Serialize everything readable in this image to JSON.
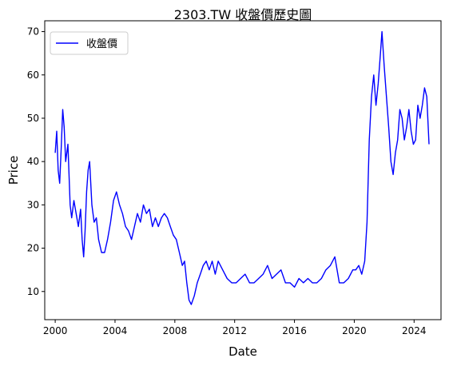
{
  "chart_data": {
    "type": "line",
    "title": "2303.TW 收盤價歷史圖",
    "xlabel": "Date",
    "ylabel": "Price",
    "xlim": [
      1999.3,
      2025.8
    ],
    "ylim": [
      3.5,
      72.5
    ],
    "x_ticks": [
      "2000",
      "2004",
      "2008",
      "2012",
      "2016",
      "2020",
      "2024"
    ],
    "y_ticks": [
      "10",
      "20",
      "30",
      "40",
      "50",
      "60",
      "70"
    ],
    "grid": false,
    "legend": "top-left",
    "colors": {
      "line": "#0000ff",
      "axis": "#000000",
      "background": "#ffffff"
    },
    "series": [
      {
        "name": "收盤價",
        "x": [
          2000.0,
          2000.1,
          2000.2,
          2000.3,
          2000.4,
          2000.5,
          2000.6,
          2000.7,
          2000.85,
          2001.0,
          2001.1,
          2001.25,
          2001.4,
          2001.55,
          2001.7,
          2001.8,
          2001.9,
          2002.0,
          2002.1,
          2002.2,
          2002.3,
          2002.45,
          2002.6,
          2002.75,
          2002.9,
          2003.1,
          2003.3,
          2003.5,
          2003.7,
          2003.9,
          2004.1,
          2004.3,
          2004.5,
          2004.7,
          2004.9,
          2005.1,
          2005.3,
          2005.5,
          2005.7,
          2005.9,
          2006.1,
          2006.3,
          2006.5,
          2006.7,
          2006.9,
          2007.1,
          2007.3,
          2007.5,
          2007.7,
          2007.9,
          2008.1,
          2008.3,
          2008.5,
          2008.65,
          2008.8,
          2008.95,
          2009.1,
          2009.3,
          2009.5,
          2009.7,
          2009.9,
          2010.1,
          2010.3,
          2010.5,
          2010.7,
          2010.9,
          2011.2,
          2011.5,
          2011.8,
          2012.1,
          2012.4,
          2012.7,
          2013.0,
          2013.3,
          2013.6,
          2013.9,
          2014.2,
          2014.5,
          2014.8,
          2015.1,
          2015.4,
          2015.7,
          2016.0,
          2016.3,
          2016.6,
          2016.9,
          2017.2,
          2017.5,
          2017.8,
          2018.1,
          2018.4,
          2018.7,
          2019.0,
          2019.3,
          2019.6,
          2019.9,
          2020.1,
          2020.3,
          2020.5,
          2020.7,
          2020.85,
          2021.0,
          2021.15,
          2021.3,
          2021.45,
          2021.6,
          2021.75,
          2021.85,
          2022.0,
          2022.15,
          2022.3,
          2022.45,
          2022.6,
          2022.75,
          2022.9,
          2023.05,
          2023.2,
          2023.35,
          2023.5,
          2023.65,
          2023.8,
          2023.95,
          2024.1,
          2024.25,
          2024.4,
          2024.55,
          2024.7,
          2024.85,
          2025.0
        ],
        "y": [
          42,
          47,
          38,
          35,
          43,
          52,
          48,
          40,
          44,
          30,
          27,
          31,
          28,
          25,
          29,
          22,
          18,
          24,
          33,
          38,
          40,
          30,
          26,
          27,
          22,
          19,
          19,
          22,
          26,
          31,
          33,
          30,
          28,
          25,
          24,
          22,
          25,
          28,
          26,
          30,
          28,
          29,
          25,
          27,
          25,
          27,
          28,
          27,
          25,
          23,
          22,
          19,
          16,
          17,
          12,
          8,
          7,
          9,
          12,
          14,
          16,
          17,
          15,
          17,
          14,
          17,
          15,
          13,
          12,
          12,
          13,
          14,
          12,
          12,
          13,
          14,
          16,
          13,
          14,
          15,
          12,
          12,
          11,
          13,
          12,
          13,
          12,
          12,
          13,
          15,
          16,
          18,
          12,
          12,
          13,
          15,
          15,
          16,
          14,
          17,
          26,
          45,
          55,
          60,
          53,
          58,
          65,
          70,
          62,
          55,
          48,
          40,
          37,
          42,
          45,
          52,
          50,
          45,
          48,
          52,
          47,
          44,
          45,
          53,
          50,
          53,
          57,
          55,
          44
        ]
      }
    ]
  }
}
